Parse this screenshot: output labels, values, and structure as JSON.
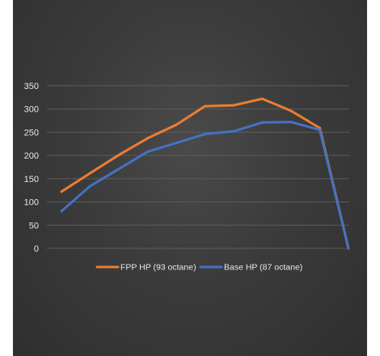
{
  "chart_data": {
    "type": "line",
    "title": "",
    "xlabel": "",
    "ylabel": "",
    "ylim": [
      0,
      350
    ],
    "yticks": [
      "0",
      "50",
      "100",
      "150",
      "200",
      "250",
      "300",
      "350"
    ],
    "grid": true,
    "legend_position": "bottom",
    "x": [
      1,
      2,
      3,
      4,
      5,
      6,
      7,
      8,
      9,
      10,
      11
    ],
    "series": [
      {
        "name": "FPP HP (93 octane)",
        "color": "#ed7d31",
        "values": [
          122,
          162,
          201,
          237,
          266,
          306,
          308,
          322,
          296,
          259,
          0
        ]
      },
      {
        "name": "Base HP (87 octane)",
        "color": "#4472c4",
        "values": [
          80,
          134,
          171,
          208,
          227,
          246,
          252,
          271,
          272,
          255,
          0
        ]
      }
    ]
  }
}
